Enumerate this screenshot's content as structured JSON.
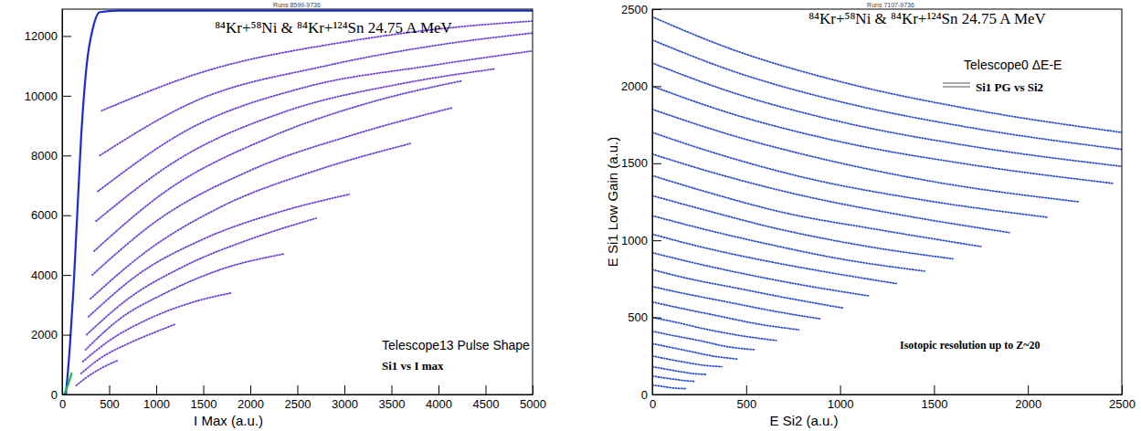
{
  "chart_data": [
    {
      "type": "line",
      "title": "⁸⁴Kr+⁵⁸Ni & ⁸⁴Kr+¹²⁴Sn 24.75 A MeV",
      "subtitle": "Runs 8599-9736",
      "annotations": [
        "Telescope13 Pulse Shape",
        "Si1 vs I max"
      ],
      "xlabel": "I Max (a.u.)",
      "xlim": [
        0,
        5000
      ],
      "ylim": [
        0,
        12900
      ],
      "xticks": [
        0,
        500,
        1000,
        1500,
        2000,
        2500,
        3000,
        3500,
        4000,
        4500,
        5000
      ],
      "yticks": [
        0,
        2000,
        4000,
        6000,
        8000,
        10000,
        12000
      ],
      "series": [
        {
          "color": "#1a2bd0",
          "line_style": "solid",
          "x": [
            40,
            80,
            120,
            160,
            200,
            260,
            330,
            400,
            600,
            2000,
            5000
          ],
          "values": [
            0,
            1500,
            3500,
            6000,
            8500,
            11000,
            12300,
            12800,
            12850,
            12850,
            12850
          ]
        },
        {
          "color": "#1fb54a",
          "line_style": "solid",
          "x": [
            20,
            60,
            100
          ],
          "values": [
            0,
            300,
            700
          ]
        },
        {
          "color": "#6b3fe0",
          "line_style": "dotted",
          "x": [
            150,
            250,
            400,
            600
          ],
          "values": [
            300,
            550,
            850,
            1150
          ]
        },
        {
          "color": "#6b3fe0",
          "line_style": "dotted",
          "x": [
            200,
            400,
            700,
            1000,
            1200
          ],
          "values": [
            700,
            1200,
            1700,
            2100,
            2350
          ]
        },
        {
          "color": "#6b3fe0",
          "line_style": "dotted",
          "x": [
            220,
            500,
            900,
            1400,
            1800
          ],
          "values": [
            1100,
            1800,
            2500,
            3100,
            3400
          ]
        },
        {
          "color": "#6b3fe0",
          "line_style": "dotted",
          "x": [
            250,
            600,
            1100,
            1700,
            2350
          ],
          "values": [
            1500,
            2500,
            3400,
            4200,
            4700
          ]
        },
        {
          "color": "#6b3fe0",
          "line_style": "dotted",
          "x": [
            260,
            700,
            1300,
            2000,
            2700
          ],
          "values": [
            2000,
            3200,
            4300,
            5200,
            5900
          ]
        },
        {
          "color": "#6b3fe0",
          "line_style": "dotted",
          "x": [
            280,
            800,
            1500,
            2300,
            3050
          ],
          "values": [
            2600,
            4000,
            5200,
            6100,
            6700
          ]
        },
        {
          "color": "#6b3fe0",
          "line_style": "dotted",
          "x": [
            300,
            900,
            1700,
            2700,
            3700
          ],
          "values": [
            3200,
            4800,
            6300,
            7500,
            8400
          ]
        },
        {
          "color": "#6b3fe0",
          "line_style": "dotted",
          "x": [
            320,
            1000,
            2000,
            3100,
            4150
          ],
          "values": [
            4000,
            5800,
            7500,
            8700,
            9600
          ]
        },
        {
          "color": "#6b3fe0",
          "line_style": "dotted",
          "x": [
            340,
            1100,
            2200,
            3300,
            4250
          ],
          "values": [
            4800,
            6800,
            8600,
            9800,
            10500
          ]
        },
        {
          "color": "#6b3fe0",
          "line_style": "dotted",
          "x": [
            360,
            1200,
            2400,
            3600,
            4600
          ],
          "values": [
            5800,
            7800,
            9500,
            10400,
            10900
          ]
        },
        {
          "color": "#6b3fe0",
          "line_style": "dotted",
          "x": [
            380,
            1300,
            2600,
            3900,
            5000
          ],
          "values": [
            6800,
            8800,
            10300,
            11000,
            11500
          ]
        },
        {
          "color": "#6b3fe0",
          "line_style": "dotted",
          "x": [
            400,
            1400,
            2800,
            4000,
            5000
          ],
          "values": [
            8000,
            9800,
            11000,
            11700,
            12100
          ]
        },
        {
          "color": "#6b3fe0",
          "line_style": "dotted",
          "x": [
            420,
            1500,
            3000,
            4200,
            5000
          ],
          "values": [
            9500,
            10800,
            11800,
            12300,
            12500
          ]
        }
      ]
    },
    {
      "type": "line",
      "title": "⁸⁴Kr+⁵⁸Ni & ⁸⁴Kr+¹²⁴Sn 24.75 A MeV",
      "subtitle": "Runs 7107-9736",
      "annotations": [
        "Telescope0 ΔE-E",
        "Si1 PG vs Si2",
        "Isotopic resolution up to Z~20"
      ],
      "xlabel": "E Si2 (a.u.)",
      "ylabel": "E Si1 Low Gain (a.u.)",
      "color": "#2f4fd2",
      "xlim": [
        0,
        2500
      ],
      "ylim": [
        0,
        2500
      ],
      "xticks": [
        0,
        500,
        1000,
        1500,
        2000,
        2500
      ],
      "yticks": [
        0,
        500,
        1000,
        1500,
        2000,
        2500
      ],
      "series": [
        {
          "line_style": "dotted",
          "x": [
            0,
            400,
            1000,
            1700,
            2500
          ],
          "values": [
            2450,
            2250,
            2030,
            1850,
            1700
          ]
        },
        {
          "line_style": "dotted",
          "x": [
            0,
            400,
            1000,
            1700,
            2500
          ],
          "values": [
            2300,
            2110,
            1900,
            1730,
            1590
          ]
        },
        {
          "line_style": "dotted",
          "x": [
            0,
            400,
            1000,
            1700,
            2500
          ],
          "values": [
            2150,
            1970,
            1770,
            1610,
            1480
          ]
        },
        {
          "line_style": "dotted",
          "x": [
            0,
            400,
            1000,
            1700,
            2450
          ],
          "values": [
            2000,
            1830,
            1640,
            1490,
            1370
          ]
        },
        {
          "line_style": "dotted",
          "x": [
            0,
            400,
            900,
            1500,
            2270
          ],
          "values": [
            1850,
            1690,
            1530,
            1380,
            1250
          ]
        },
        {
          "line_style": "dotted",
          "x": [
            0,
            350,
            800,
            1400,
            2100
          ],
          "values": [
            1700,
            1560,
            1410,
            1270,
            1150
          ]
        },
        {
          "line_style": "dotted",
          "x": [
            0,
            350,
            800,
            1300,
            1900
          ],
          "values": [
            1560,
            1430,
            1290,
            1170,
            1050
          ]
        },
        {
          "line_style": "dotted",
          "x": [
            0,
            300,
            700,
            1200,
            1750
          ],
          "values": [
            1420,
            1310,
            1180,
            1070,
            960
          ]
        },
        {
          "line_style": "dotted",
          "x": [
            0,
            300,
            650,
            1100,
            1600
          ],
          "values": [
            1290,
            1190,
            1080,
            970,
            880
          ]
        },
        {
          "line_style": "dotted",
          "x": [
            0,
            250,
            600,
            1000,
            1450
          ],
          "values": [
            1160,
            1080,
            980,
            880,
            800
          ]
        },
        {
          "line_style": "dotted",
          "x": [
            0,
            250,
            550,
            900,
            1300
          ],
          "values": [
            1040,
            960,
            880,
            800,
            720
          ]
        },
        {
          "line_style": "dotted",
          "x": [
            0,
            200,
            500,
            800,
            1150
          ],
          "values": [
            920,
            860,
            780,
            710,
            640
          ]
        },
        {
          "line_style": "dotted",
          "x": [
            0,
            200,
            450,
            700,
            1020
          ],
          "values": [
            810,
            750,
            690,
            630,
            560
          ]
        },
        {
          "line_style": "dotted",
          "x": [
            0,
            150,
            400,
            650,
            900
          ],
          "values": [
            700,
            660,
            600,
            540,
            490
          ]
        },
        {
          "line_style": "dotted",
          "x": [
            0,
            150,
            350,
            550,
            780
          ],
          "values": [
            600,
            560,
            510,
            460,
            420
          ]
        },
        {
          "line_style": "dotted",
          "x": [
            0,
            120,
            300,
            480,
            660
          ],
          "values": [
            500,
            470,
            420,
            380,
            350
          ]
        },
        {
          "line_style": "dotted",
          "x": [
            0,
            100,
            250,
            400,
            550
          ],
          "values": [
            410,
            385,
            350,
            310,
            290
          ]
        },
        {
          "line_style": "dotted",
          "x": [
            0,
            100,
            200,
            320,
            450
          ],
          "values": [
            330,
            305,
            280,
            250,
            230
          ]
        },
        {
          "line_style": "dotted",
          "x": [
            0,
            80,
            170,
            270,
            370
          ],
          "values": [
            250,
            230,
            210,
            190,
            180
          ]
        },
        {
          "line_style": "dotted",
          "x": [
            0,
            70,
            140,
            220,
            290
          ],
          "values": [
            180,
            165,
            150,
            135,
            130
          ]
        },
        {
          "line_style": "dotted",
          "x": [
            0,
            50,
            110,
            170,
            230
          ],
          "values": [
            120,
            110,
            100,
            90,
            85
          ]
        },
        {
          "line_style": "dotted",
          "x": [
            0,
            40,
            90,
            140,
            180
          ],
          "values": [
            60,
            55,
            45,
            40,
            38
          ]
        }
      ]
    }
  ]
}
